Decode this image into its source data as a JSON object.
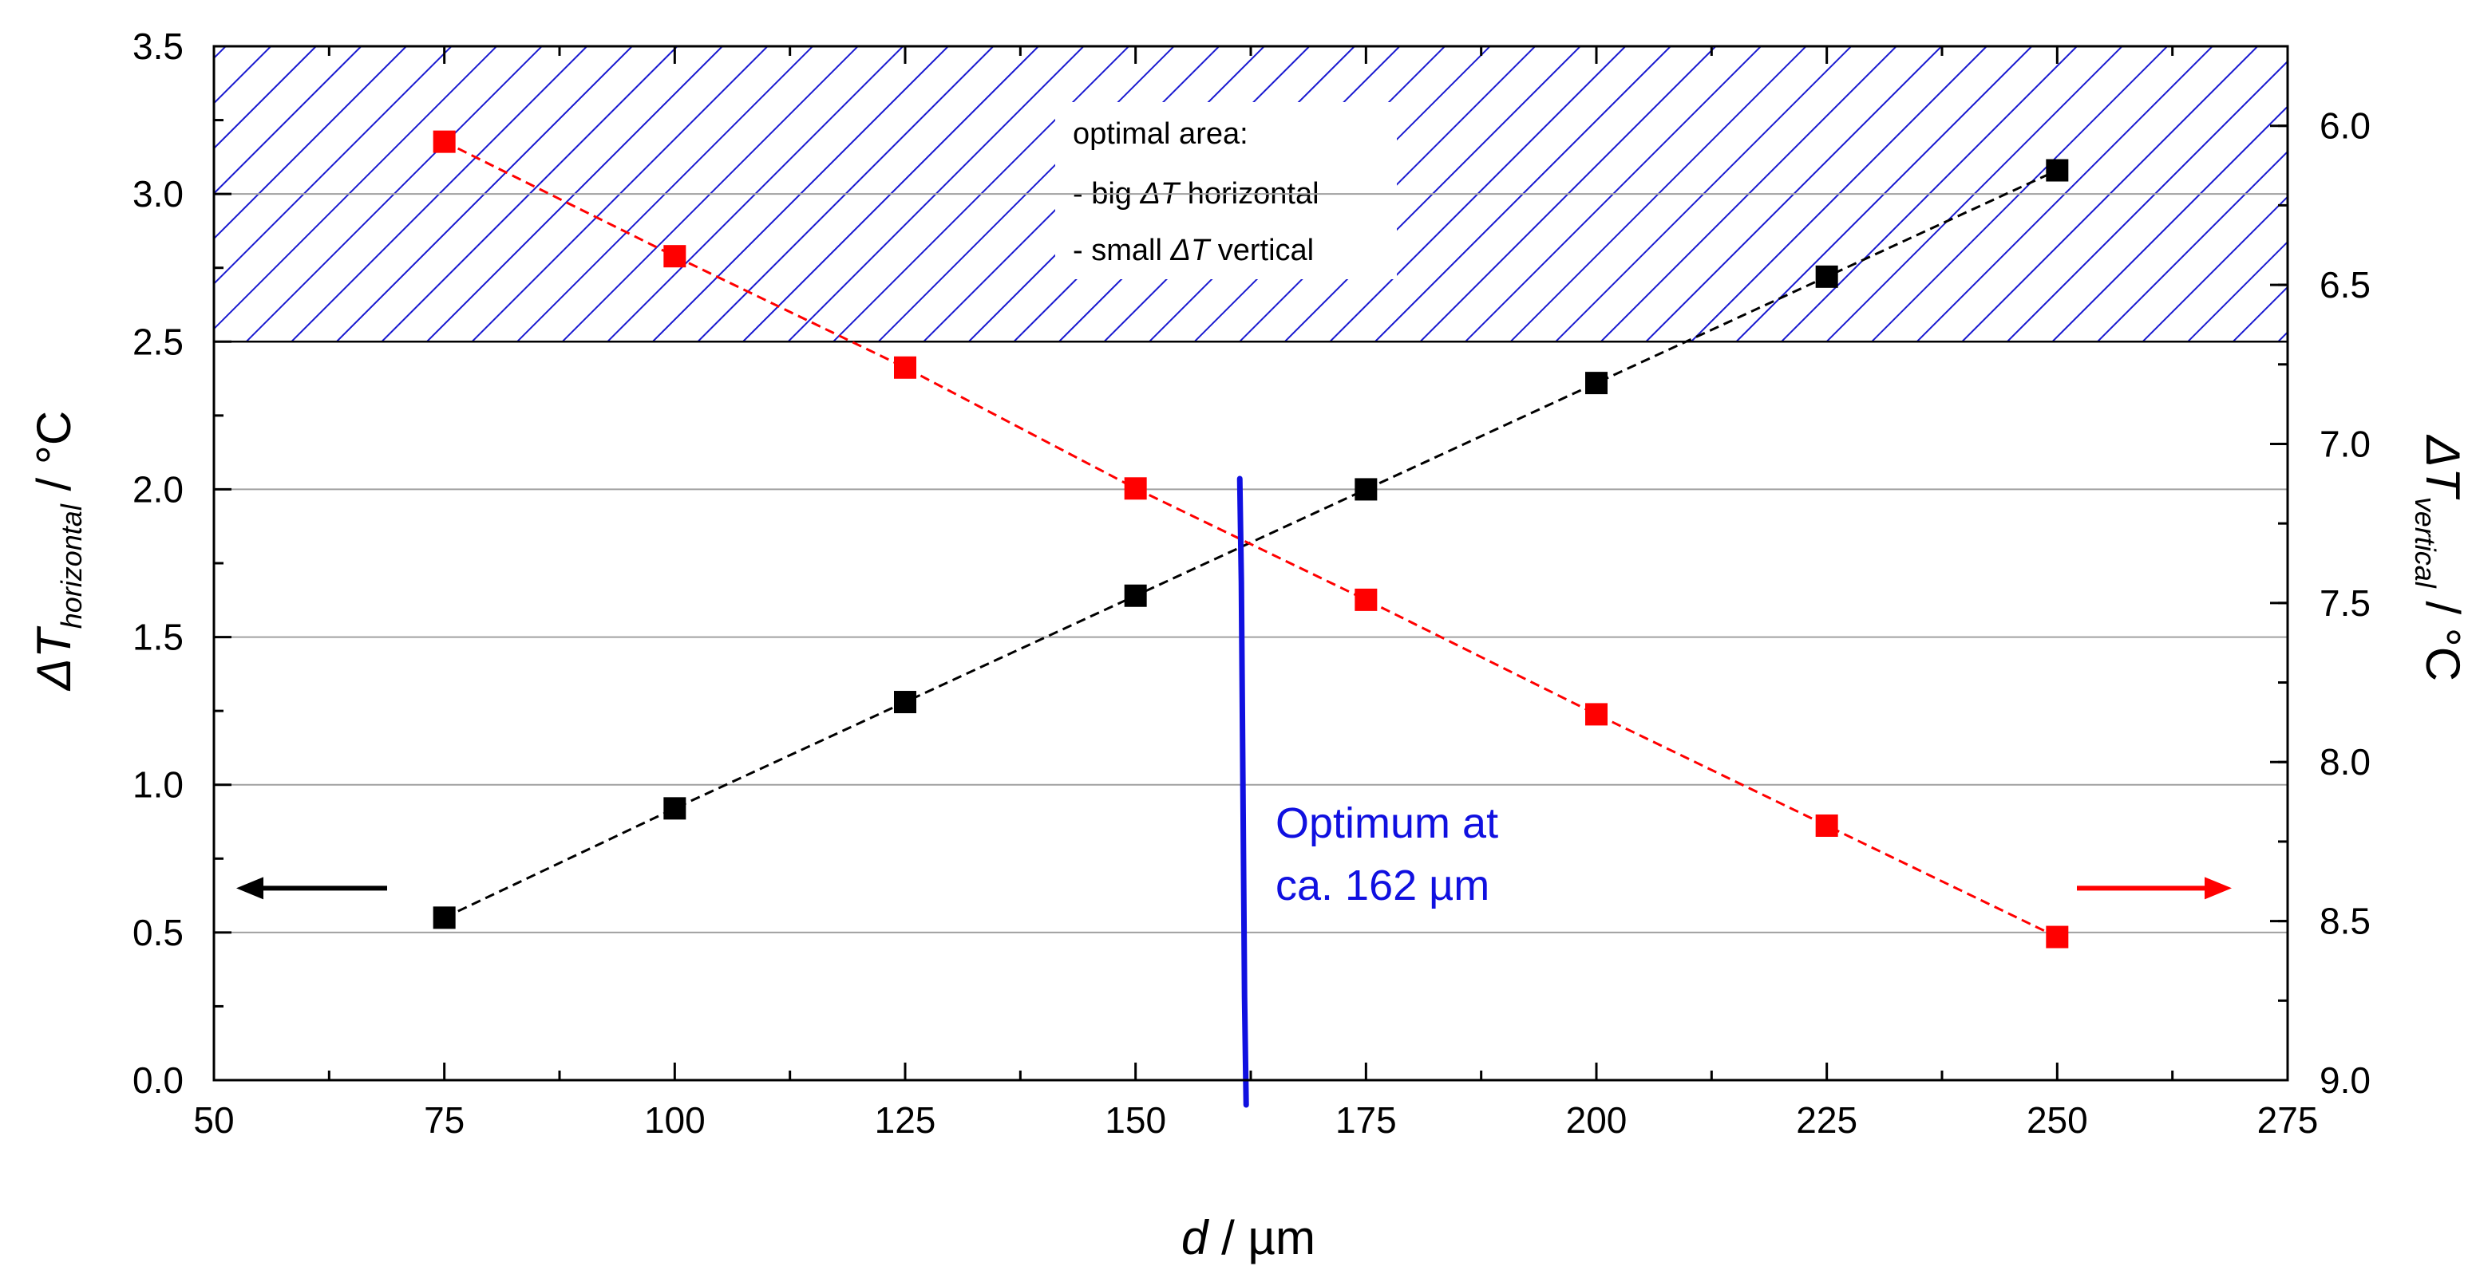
{
  "chart_data": {
    "type": "scatter",
    "xlabel": {
      "var": "d",
      "unit": " / µm"
    },
    "ylabel_left": {
      "var": "ΔT",
      "sub": "horizontal",
      "unit": " / °C"
    },
    "ylabel_right": {
      "var": "ΔT",
      "sub": "vertical",
      "unit": " / °C"
    },
    "xlim": [
      50,
      275
    ],
    "ylim_left": [
      0.0,
      3.5
    ],
    "ylim_right": [
      9.0,
      5.75
    ],
    "x_ticks": [
      "50",
      "75",
      "100",
      "125",
      "150",
      "175",
      "200",
      "225",
      "250",
      "275"
    ],
    "y_left_ticks": [
      "0.0",
      "0.5",
      "1.0",
      "1.5",
      "2.0",
      "2.5",
      "3.0",
      "3.5"
    ],
    "y_right_ticks": [
      "6.0",
      "6.5",
      "7.0",
      "7.5",
      "8.0",
      "8.5",
      "9.0"
    ],
    "gridlines_y_left": [
      0.5,
      1.0,
      1.5,
      2.0,
      2.5,
      3.0
    ],
    "series": [
      {
        "name": "ΔT horizontal",
        "axis": "left",
        "color": "#000000",
        "x": [
          75,
          100,
          125,
          150,
          175,
          200,
          225,
          250
        ],
        "y": [
          0.55,
          0.92,
          1.28,
          1.64,
          2.0,
          2.36,
          2.72,
          3.08
        ]
      },
      {
        "name": "ΔT vertical",
        "axis": "right",
        "color": "#ff0000",
        "x": [
          75,
          100,
          125,
          150,
          175,
          200,
          225,
          250
        ],
        "y": [
          6.05,
          6.41,
          6.76,
          7.14,
          7.49,
          7.85,
          8.2,
          8.55
        ]
      }
    ],
    "optimal_area": {
      "y_from": 2.5,
      "y_to": 3.5,
      "hatch_color": "#1a1ad0",
      "lines": [
        {
          "text": "optimal area:"
        },
        {
          "prefix": "- big ",
          "var": "ΔT",
          "suffix": " horizontal"
        },
        {
          "prefix": "- small ",
          "var": "ΔT",
          "suffix": " vertical"
        }
      ]
    },
    "optimum": {
      "x": 162,
      "color": "#1010e0",
      "label_line1": "Optimum at",
      "label_line2": "ca. 162 µm"
    },
    "arrows": [
      {
        "direction": "left",
        "axis": "left",
        "color": "#000000"
      },
      {
        "direction": "right",
        "axis": "right",
        "color": "#ff0000"
      }
    ]
  }
}
